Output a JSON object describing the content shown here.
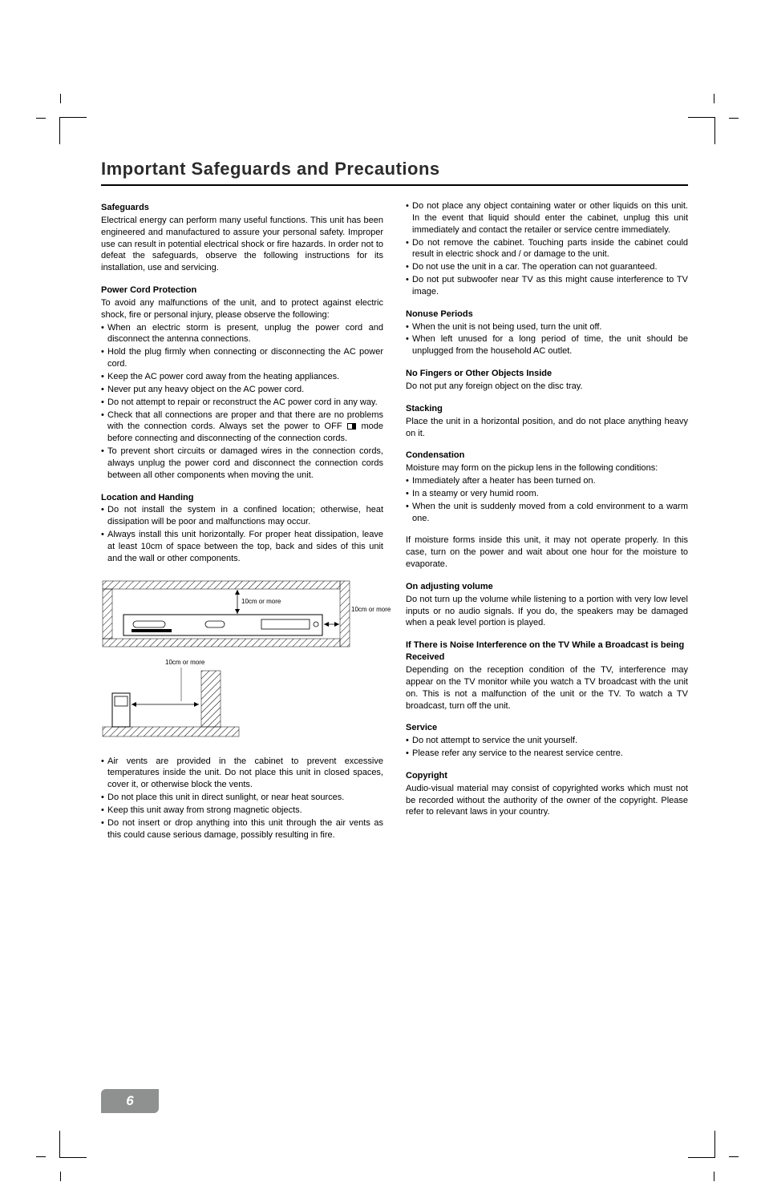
{
  "title": "Important Safeguards and Precautions",
  "page_number": "6",
  "left": {
    "safeguards": {
      "h": "Safeguards",
      "p": "Electrical energy can perform many useful functions. This unit has been engineered and manufactured to assure your personal safety. Improper use can result in potential electrical shock or fire hazards. In order not to defeat the safeguards, observe the following instructions for its installation, use and servicing."
    },
    "power": {
      "h": "Power Cord Protection",
      "p": "To avoid any malfunctions of the unit, and to protect against electric shock, fire or personal injury, please observe the following:",
      "items": [
        "When an electric storm is present, unplug the power cord and disconnect the antenna connections.",
        "Hold  the plug firmly when connecting or disconnecting the AC power cord.",
        "Keep the AC power cord away from the heating appliances.",
        "Never put any heavy object on the AC power cord.",
        "Do not attempt to repair or reconstruct the AC power cord in any way.",
        "__OFF__",
        "To prevent short circuits or damaged wires in the connection cords, always unplug the power cord and disconnect the connection cords between all other components when moving the unit."
      ],
      "off_pre": "Check that all connections are proper and that there are no problems with the connection cords. Always set the power to OFF ",
      "off_post": " mode before connecting and disconnecting of the connection cords."
    },
    "location": {
      "h": "Location and Handing",
      "items_top": [
        "Do not install the system in a confined location; otherwise, heat dissipation will be poor and malfunctions may occur.",
        "Always install this unit horizontally. For proper heat dissipation, leave at least 10cm of space between the top, back and sides of this unit and the wall or other components."
      ],
      "items_bottom": [
        "Air vents are provided in the cabinet to prevent excessive temperatures inside the unit. Do not place this unit in closed spaces, cover it, or otherwise block the vents.",
        "Do not place this unit in direct sunlight, or near heat sources.",
        "Keep this unit away from strong magnetic objects.",
        "Do not insert or drop anything into this unit through the air vents as this could cause serious damage, possibly resulting in fire."
      ]
    },
    "diag": {
      "top_label": "10cm or more",
      "right_label": "10cm or more",
      "floor_label": "10cm or more"
    }
  },
  "right": {
    "cont_items": [
      "Do not place any object containing water or other liquids on this unit. In the event that liquid should enter the cabinet, unplug this unit immediately and contact the retailer or service centre immediately.",
      "Do not remove the cabinet. Touching parts inside the cabinet could result in electric shock and / or damage to the unit.",
      "Do not use the unit in a car. The operation can not guaranteed.",
      "Do not put subwoofer near TV as this might cause interference to TV image."
    ],
    "nonuse": {
      "h": "Nonuse Periods",
      "items": [
        "When the unit is not being used, turn the unit off.",
        "When left unused for a long period of time, the unit should be unplugged from the household AC outlet."
      ]
    },
    "nofingers": {
      "h": "No Fingers or Other Objects Inside",
      "p": "Do not put any foreign object on the disc tray."
    },
    "stacking": {
      "h": "Stacking",
      "p": "Place the unit in a horizontal position, and do not place anything heavy on it."
    },
    "condensation": {
      "h": "Condensation",
      "p1": "Moisture may form on the pickup lens in the following conditions:",
      "items": [
        "Immediately after a heater has been turned on.",
        "In a steamy or very humid room.",
        "When the unit is suddenly moved from a cold environment  to a warm one."
      ],
      "p2": "If moisture forms inside this unit, it may not operate properly. In this case, turn on the power and wait about one hour for the moisture to evaporate."
    },
    "volume": {
      "h": "On adjusting volume",
      "p": "Do not turn up the volume while listening to a portion with very low level inputs or no audio signals. If you do, the speakers may be damaged when a peak level portion is played."
    },
    "noise": {
      "h": "If There is Noise Interference on the TV While a Broadcast is being Received",
      "p": "Depending on the reception condition of the TV, interference may appear on the TV monitor while you watch a TV broadcast with the unit on. This is not a malfunction of the unit or the TV. To watch a TV broadcast, turn off the unit."
    },
    "service": {
      "h": "Service",
      "items": [
        "Do not attempt to service the unit yourself.",
        "Please refer any service to the nearest service centre."
      ]
    },
    "copyright": {
      "h": "Copyright",
      "p": "Audio-visual material may consist of copyrighted works which must not be recorded without the authority of the owner of the copyright. Please refer to relevant laws in your country."
    }
  }
}
